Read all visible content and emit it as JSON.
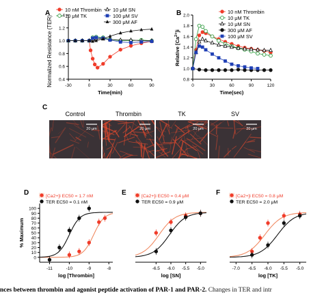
{
  "colors": {
    "red": "#f03c2a",
    "green": "#2e9a3e",
    "blue": "#1f3fb5",
    "black": "#111111",
    "fit_red": "#f08a62",
    "fit_black": "#111111",
    "micro_bg": "#3a3236",
    "micro_fiber": "#e2492e"
  },
  "chart_data": [
    {
      "panel": "A",
      "type": "line",
      "xlabel": "Time(min)",
      "ylabel": "Normalized Resistance (TER)",
      "xlim": [
        -30,
        90
      ],
      "ylim": [
        0.4,
        1.4
      ],
      "xticks": [
        "-30",
        "0",
        "30",
        "60",
        "90"
      ],
      "yticks": [
        "0.4",
        "0.6",
        "0.8",
        "1.0",
        "1.2",
        "1.4"
      ],
      "legend_placement": "top",
      "series": [
        {
          "name": "10 nM Thrombin",
          "color": "red",
          "marker": "circle-filled",
          "x": [
            -30,
            -20,
            -10,
            0,
            2,
            5,
            8,
            12,
            20,
            30,
            45,
            60,
            75,
            90
          ],
          "y": [
            1.0,
            1.0,
            1.0,
            1.0,
            0.85,
            0.72,
            0.63,
            0.58,
            0.64,
            0.75,
            0.86,
            0.92,
            0.96,
            0.99
          ]
        },
        {
          "name": "10 μM TK",
          "color": "green",
          "marker": "circle-open",
          "x": [
            -30,
            -20,
            -10,
            0,
            5,
            10,
            20,
            30,
            45,
            60,
            75,
            90
          ],
          "y": [
            1.0,
            1.0,
            1.0,
            1.0,
            1.05,
            1.06,
            1.05,
            1.02,
            1.0,
            1.0,
            1.01,
            1.0
          ]
        },
        {
          "name": "10 μM SN",
          "color": "black",
          "marker": "triangle-open",
          "x": [
            -30,
            -20,
            -10,
            0,
            5,
            10,
            20,
            30,
            45,
            60,
            75,
            90
          ],
          "y": [
            1.0,
            1.0,
            1.0,
            1.0,
            1.02,
            1.03,
            1.03,
            1.02,
            1.01,
            1.01,
            1.0,
            1.0
          ]
        },
        {
          "name": "100 μM SV",
          "color": "blue",
          "marker": "square-filled",
          "x": [
            -30,
            -20,
            -10,
            0,
            5,
            10,
            20,
            30,
            45,
            60,
            75,
            90
          ],
          "y": [
            1.0,
            1.0,
            1.0,
            1.0,
            1.04,
            1.05,
            1.04,
            1.01,
            0.98,
            0.97,
            0.98,
            0.99
          ]
        },
        {
          "name": "300 μM AF",
          "color": "black",
          "marker": "triangle-filled",
          "x": [
            -30,
            -20,
            -10,
            0,
            5,
            10,
            20,
            30,
            45,
            60,
            75,
            90
          ],
          "y": [
            1.0,
            1.0,
            1.0,
            1.0,
            0.99,
            1.0,
            1.03,
            1.07,
            1.12,
            1.15,
            1.17,
            1.18
          ]
        }
      ]
    },
    {
      "panel": "B",
      "type": "line",
      "xlabel": "Time(sec)",
      "ylabel": "Relative [Ca2+]i",
      "xlim": [
        0,
        120
      ],
      "ylim": [
        0.8,
        2.0
      ],
      "xticks": [
        "0",
        "30",
        "60",
        "90",
        "120"
      ],
      "yticks": [
        "0.8",
        "1.0",
        "1.2",
        "1.4",
        "1.6",
        "1.8",
        "2.0"
      ],
      "legend_placement": "top-right",
      "series": [
        {
          "name": "10 nM Thrombin",
          "color": "red",
          "marker": "circle-filled",
          "x": [
            0,
            5,
            10,
            15,
            20,
            30,
            40,
            50,
            60,
            70,
            80,
            90,
            100,
            110,
            120
          ],
          "y": [
            1.0,
            1.35,
            1.62,
            1.68,
            1.66,
            1.6,
            1.55,
            1.5,
            1.46,
            1.42,
            1.39,
            1.37,
            1.35,
            1.33,
            1.3
          ]
        },
        {
          "name": "10 μM TK",
          "color": "green",
          "marker": "circle-open",
          "x": [
            0,
            5,
            10,
            15,
            20,
            30,
            40,
            50,
            60,
            70,
            80,
            90,
            100,
            110,
            120
          ],
          "y": [
            1.0,
            1.55,
            1.8,
            1.78,
            1.7,
            1.6,
            1.52,
            1.46,
            1.42,
            1.38,
            1.35,
            1.32,
            1.28,
            1.26,
            1.24
          ]
        },
        {
          "name": "10 μM SN",
          "color": "black",
          "marker": "triangle-open",
          "x": [
            0,
            5,
            10,
            15,
            20,
            30,
            40,
            50,
            60,
            70,
            80,
            90,
            100,
            110,
            120
          ],
          "y": [
            1.0,
            1.3,
            1.5,
            1.55,
            1.52,
            1.48,
            1.44,
            1.42,
            1.4,
            1.38,
            1.37,
            1.36,
            1.35,
            1.34,
            1.34
          ]
        },
        {
          "name": "300 μM AF",
          "color": "black",
          "marker": "circle-filled",
          "x": [
            0,
            10,
            20,
            30,
            40,
            50,
            60,
            70,
            80,
            90,
            100,
            110,
            120
          ],
          "y": [
            1.0,
            0.98,
            0.97,
            0.97,
            0.97,
            0.97,
            0.97,
            0.98,
            0.97,
            0.97,
            0.97,
            0.97,
            0.97
          ]
        },
        {
          "name": "100 μM SV",
          "color": "blue",
          "marker": "square-filled",
          "x": [
            0,
            5,
            10,
            15,
            20,
            30,
            40,
            50,
            60,
            70,
            80,
            90,
            100
          ],
          "y": [
            1.0,
            1.3,
            1.42,
            1.4,
            1.35,
            1.27,
            1.2,
            1.14,
            1.08,
            1.05,
            1.03,
            1.01,
            1.0
          ]
        }
      ]
    },
    {
      "panel": "D",
      "type": "scatter",
      "xlabel": "log [Thrombin]",
      "ylabel": "% Maximum",
      "xlim": [
        -11.5,
        -7.8
      ],
      "ylim": [
        -10,
        110
      ],
      "xticks": [
        -11,
        -10,
        -9,
        -8
      ],
      "yticks": [
        0,
        10,
        20,
        30,
        40,
        50,
        60,
        70,
        80,
        90,
        100
      ],
      "legend_placement": "top-left",
      "legend": [
        {
          "label": "[Ca2+]i  EC50 = 1.7 nM",
          "color": "red"
        },
        {
          "label": "TER      EC50 = 0.1 nM",
          "color": "black"
        }
      ],
      "series": [
        {
          "name": "[Ca2+]i",
          "color": "red",
          "marker": "circle-filled",
          "fit_ec50_log": -8.77,
          "x": [
            -10.0,
            -9.5,
            -9.0,
            -8.5,
            -8.2
          ],
          "y": [
            5,
            12,
            30,
            72,
            80
          ]
        },
        {
          "name": "TER",
          "color": "black",
          "marker": "circle-filled",
          "fit_ec50_log": -10.0,
          "x": [
            -11.0,
            -10.5,
            -10.0,
            -9.5,
            -9.0
          ],
          "y": [
            -5,
            20,
            55,
            80,
            100
          ]
        }
      ]
    },
    {
      "panel": "E",
      "type": "scatter",
      "xlabel": "log [SN]",
      "ylabel": "",
      "xlim": [
        -7.2,
        -4.8
      ],
      "ylim": [
        -10,
        110
      ],
      "xticks": [
        "-6.5",
        "-6.0",
        "-5.5",
        "-5.0"
      ],
      "yticks": [],
      "legend_placement": "top-left",
      "legend": [
        {
          "label": "[Ca2+]i  EC50 = 0.4 μM",
          "color": "red"
        },
        {
          "label": "TER      EC50 = 0.9 μM",
          "color": "black"
        }
      ],
      "series": [
        {
          "name": "[Ca2+]i",
          "color": "red",
          "marker": "circle-filled",
          "fit_ec50_log": -6.4,
          "x": [
            -6.5,
            -6.0,
            -5.5,
            -5.0
          ],
          "y": [
            50,
            72,
            85,
            90
          ]
        },
        {
          "name": "TER",
          "color": "black",
          "marker": "circle-filled",
          "fit_ec50_log": -6.05,
          "x": [
            -6.5,
            -6.0,
            -5.5,
            -5.0
          ],
          "y": [
            12,
            55,
            82,
            90
          ]
        }
      ]
    },
    {
      "panel": "F",
      "type": "scatter",
      "xlabel": "log [TK]",
      "ylabel": "",
      "xlim": [
        -7.2,
        -4.8
      ],
      "ylim": [
        -10,
        110
      ],
      "xticks": [
        "-7.0",
        "-6.5",
        "-6.0",
        "-5.5",
        "-5.0"
      ],
      "yticks": [],
      "legend_placement": "top-left",
      "legend": [
        {
          "label": "[Ca2+]i  EC50 = 0.8 μM",
          "color": "red"
        },
        {
          "label": "TER      EC50 = 2.0 μM",
          "color": "black"
        }
      ],
      "series": [
        {
          "name": "[Ca2+]i",
          "color": "red",
          "marker": "circle-filled",
          "fit_ec50_log": -6.1,
          "x": [
            -6.5,
            -6.25,
            -6.0,
            -5.5,
            -5.0
          ],
          "y": [
            12,
            40,
            70,
            85,
            88
          ]
        },
        {
          "name": "TER",
          "color": "black",
          "marker": "circle-filled",
          "fit_ec50_log": -5.7,
          "x": [
            -6.5,
            -6.0,
            -5.5,
            -5.0
          ],
          "y": [
            5,
            25,
            70,
            85
          ]
        }
      ]
    }
  ],
  "panels": {
    "A": "A",
    "B": "B",
    "C": "C",
    "D": "D",
    "E": "E",
    "F": "F"
  },
  "panel_c": {
    "labels": [
      "Control",
      "Thrombin",
      "TK",
      "SV"
    ],
    "scale_bars": [
      "20 μm",
      "20 μm",
      "20 μm",
      "20 μm"
    ],
    "fiber_density": [
      0.25,
      1.0,
      0.85,
      0.35
    ]
  },
  "caption": {
    "bold": "nces between thrombin and agonist peptide activation of PAR-1 and PAR-2.",
    "normal": " Changes in TER and intr"
  }
}
